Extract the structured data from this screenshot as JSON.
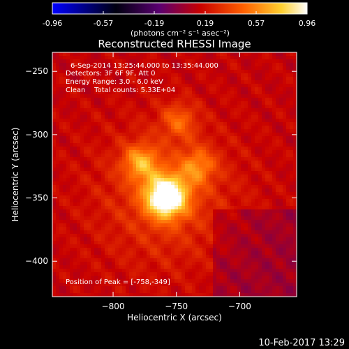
{
  "colorbar": {
    "ticks": [
      "-0.96",
      "-0.57",
      "-0.19",
      "0.19",
      "0.57",
      "0.96"
    ],
    "unit_label": "(photons cm⁻² s⁻¹ asec⁻²)",
    "colors": [
      "#0000ff",
      "#000020",
      "#500060",
      "#c00000",
      "#ff6000",
      "#ffd030",
      "#ffffff"
    ]
  },
  "chart_data": {
    "type": "heatmap",
    "title": "Reconstructed RHESSI Image",
    "xlabel": "Heliocentric X (arcsec)",
    "ylabel": "Heliocentric Y (arcsec)",
    "xlim": [
      -848,
      -655
    ],
    "ylim": [
      -428,
      -235
    ],
    "xticks": [
      -800,
      -750,
      -700
    ],
    "yticks": [
      -250,
      -300,
      -350,
      -400
    ],
    "grid": false,
    "zlim": [
      -0.96,
      0.96
    ],
    "sources": [
      {
        "x": -758,
        "y": -349,
        "peak": 0.96
      },
      {
        "x": -778,
        "y": -322,
        "peak": 0.45
      },
      {
        "x": -733,
        "y": -325,
        "peak": 0.35
      },
      {
        "x": -748,
        "y": -289,
        "peak": 0.3
      }
    ],
    "annotations": [
      "6-Sep-2014 13:25:44.000 to 13:35:44.000",
      "Detectors: 3F 6F 9F, Att 0",
      "Energy Range: 3.0 - 6.0 keV",
      "Clean    Total counts: 5.33E+04"
    ],
    "peak_label": "Position of Peak = [-758,-349]"
  },
  "footer": {
    "date": "10-Feb-2017 13:29"
  }
}
